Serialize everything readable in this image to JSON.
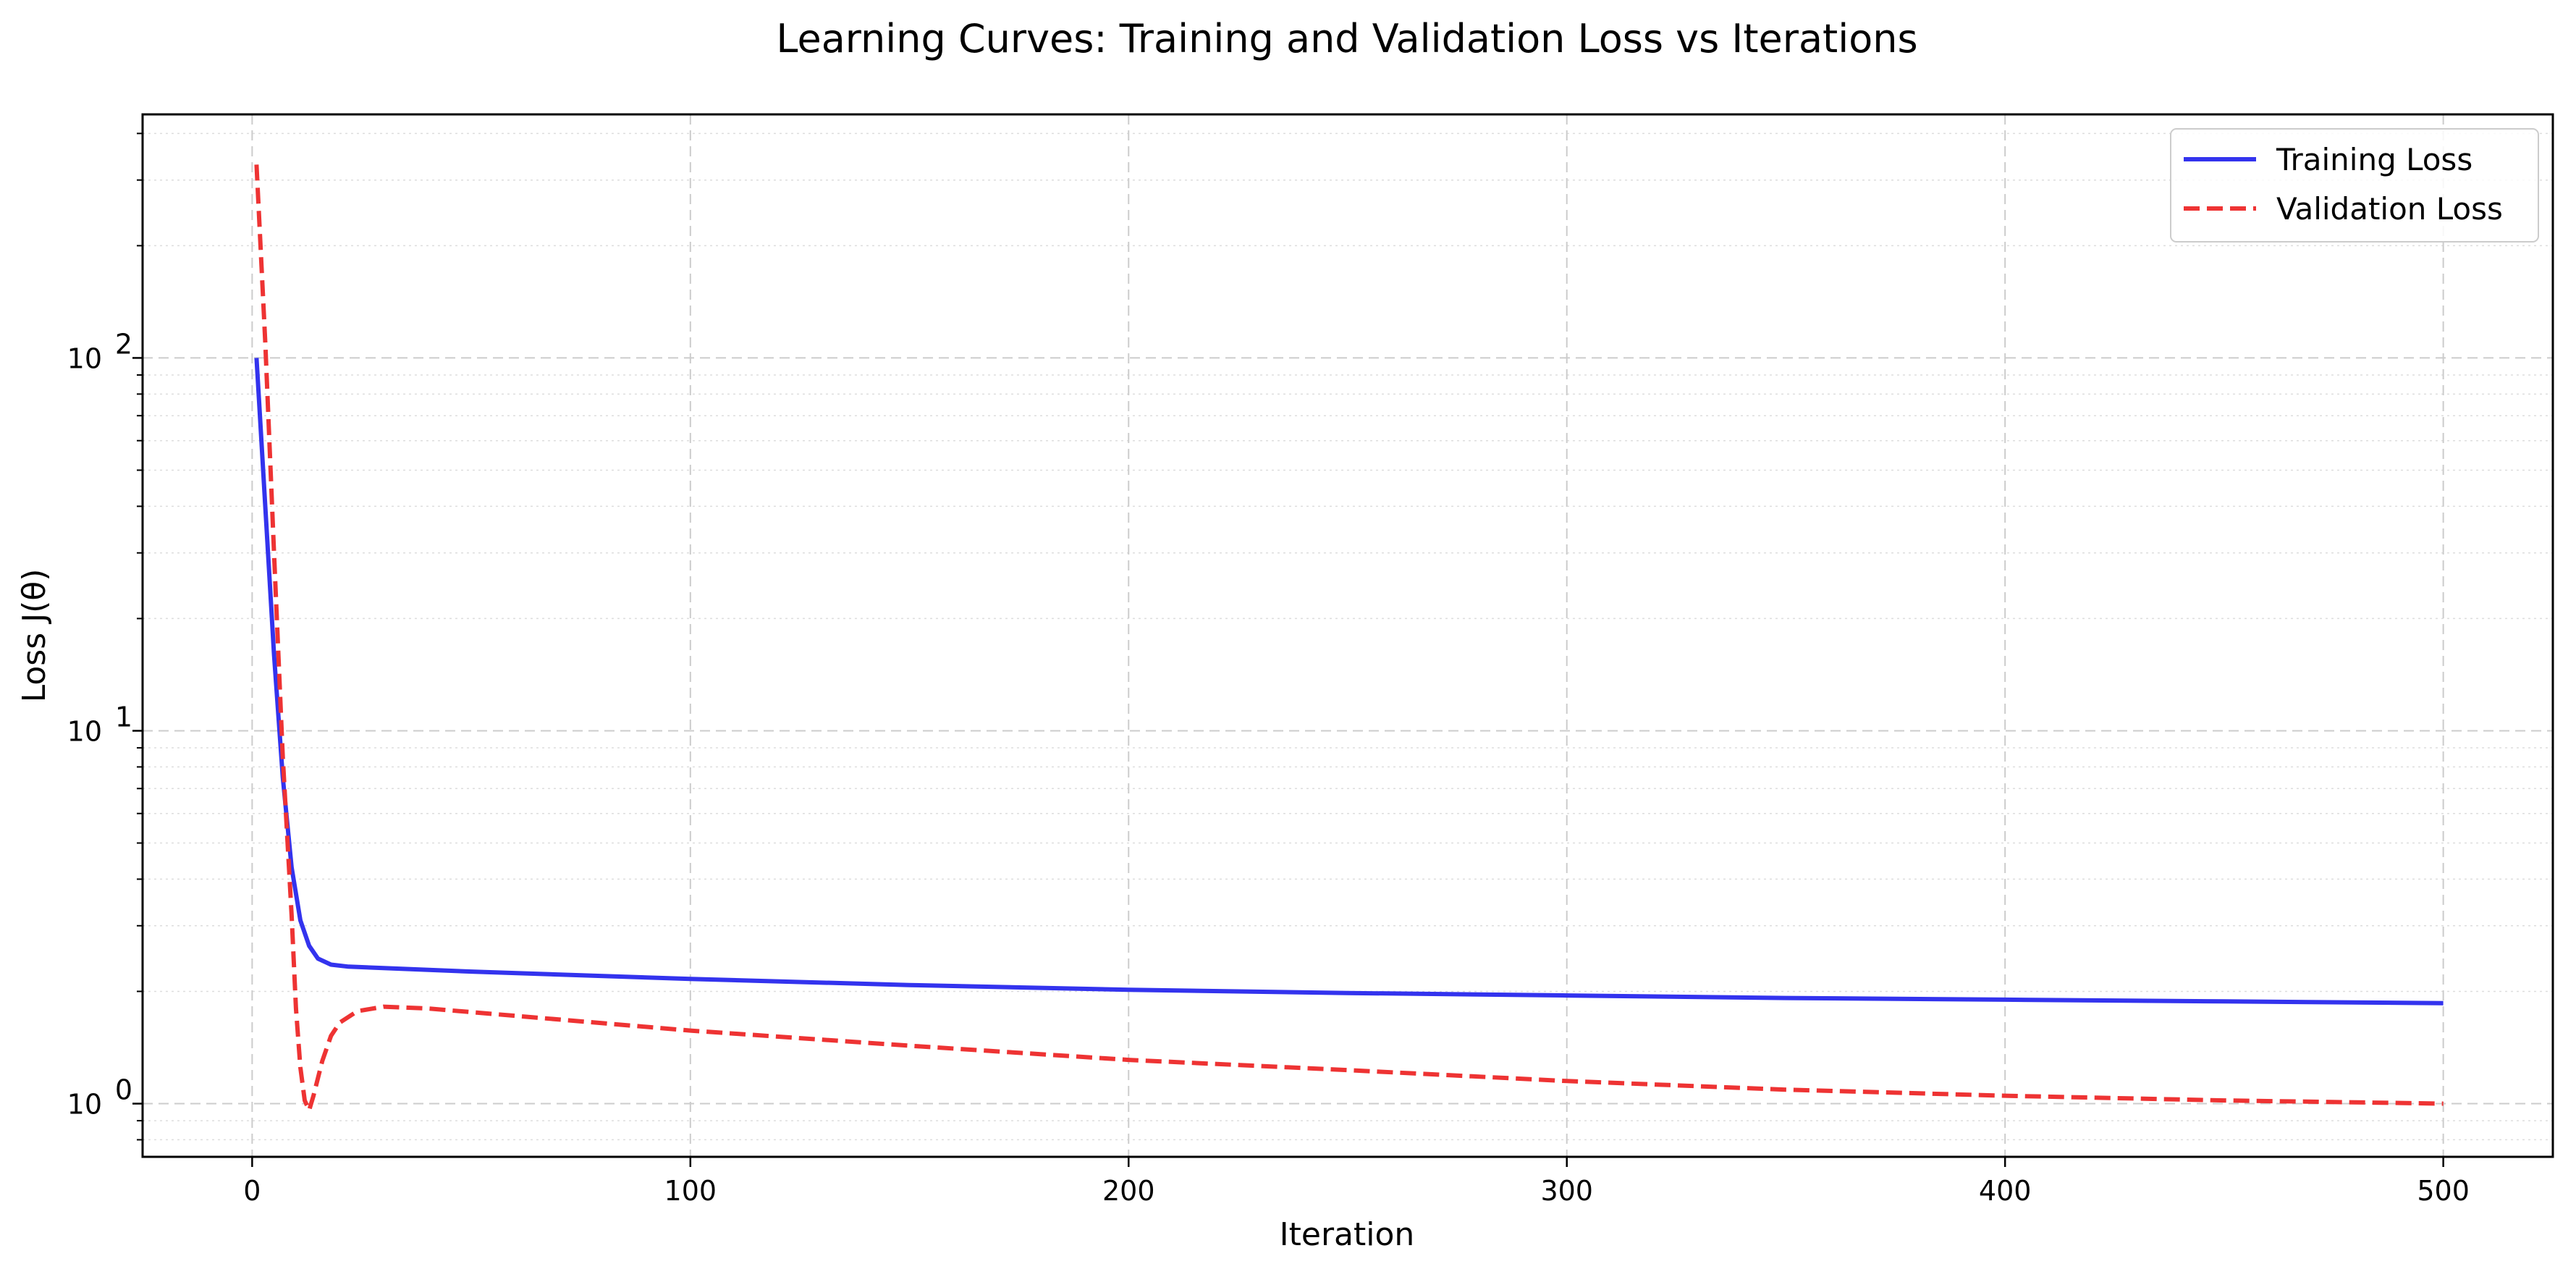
{
  "chart_data": {
    "type": "line",
    "title": "Learning Curves: Training and Validation Loss vs Iterations",
    "xlabel": "Iteration",
    "ylabel": "Loss J(θ)",
    "xlim": [
      -25,
      525
    ],
    "ylim": [
      0.72,
      450
    ],
    "yscale": "log",
    "xticks": [
      0,
      100,
      200,
      300,
      400,
      500
    ],
    "xtick_labels": [
      "0",
      "100",
      "200",
      "300",
      "400",
      "500"
    ],
    "yticks": [
      1,
      10,
      100
    ],
    "ytick_labels": [
      {
        "base": "10",
        "exp": "0"
      },
      {
        "base": "10",
        "exp": "1"
      },
      {
        "base": "10",
        "exp": "2"
      }
    ],
    "grid": true,
    "legend_position": "top-right",
    "series": [
      {
        "name": "Training Loss",
        "color": "#3333ee",
        "style": "solid",
        "x": [
          1,
          3,
          5,
          7,
          9,
          11,
          13,
          15,
          18,
          22,
          30,
          50,
          100,
          150,
          200,
          250,
          300,
          350,
          400,
          450,
          500
        ],
        "y": [
          100,
          40,
          16,
          7.5,
          4.3,
          3.1,
          2.65,
          2.45,
          2.36,
          2.33,
          2.31,
          2.26,
          2.16,
          2.08,
          2.02,
          1.98,
          1.95,
          1.92,
          1.9,
          1.88,
          1.86
        ]
      },
      {
        "name": "Validation Loss",
        "color": "#ee3333",
        "style": "dashed",
        "x": [
          1,
          3,
          5,
          7,
          9,
          10,
          11,
          12,
          13,
          14,
          16,
          18,
          20,
          24,
          30,
          40,
          60,
          100,
          150,
          200,
          250,
          300,
          350,
          400,
          450,
          500
        ],
        "y": [
          330,
          110,
          30,
          8.5,
          3.2,
          1.8,
          1.25,
          1.02,
          0.96,
          1.05,
          1.3,
          1.52,
          1.65,
          1.77,
          1.82,
          1.8,
          1.72,
          1.57,
          1.43,
          1.31,
          1.23,
          1.15,
          1.09,
          1.05,
          1.02,
          1.0
        ]
      }
    ]
  }
}
